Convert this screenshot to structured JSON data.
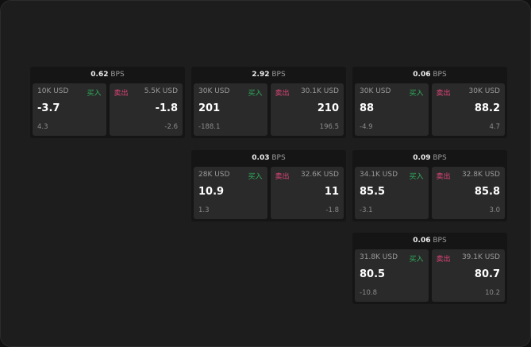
{
  "panels": [
    {
      "bps": "0.62",
      "unit": "BPS",
      "buy": {
        "size": "10K USD",
        "label": "买入",
        "price": "-3.7",
        "change": "4.3"
      },
      "sell": {
        "size": "5.5K USD",
        "label": "卖出",
        "price": "-1.8",
        "change": "-2.6"
      }
    },
    {
      "bps": "2.92",
      "unit": "BPS",
      "buy": {
        "size": "30K USD",
        "label": "买入",
        "price": "201",
        "change": "-188.1"
      },
      "sell": {
        "size": "30.1K USD",
        "label": "卖出",
        "price": "210",
        "change": "196.5"
      }
    },
    {
      "bps": "0.06",
      "unit": "BPS",
      "buy": {
        "size": "30K USD",
        "label": "买入",
        "price": "88",
        "change": "-4.9"
      },
      "sell": {
        "size": "30K USD",
        "label": "卖出",
        "price": "88.2",
        "change": "4.7"
      }
    },
    {
      "bps": "0.03",
      "unit": "BPS",
      "buy": {
        "size": "28K USD",
        "label": "买入",
        "price": "10.9",
        "change": "1.3"
      },
      "sell": {
        "size": "32.6K USD",
        "label": "卖出",
        "price": "11",
        "change": "-1.8"
      }
    },
    {
      "bps": "0.09",
      "unit": "BPS",
      "buy": {
        "size": "34.1K USD",
        "label": "买入",
        "price": "85.5",
        "change": "-3.1"
      },
      "sell": {
        "size": "32.8K USD",
        "label": "卖出",
        "price": "85.8",
        "change": "3.0"
      }
    },
    {
      "bps": "0.06",
      "unit": "BPS",
      "buy": {
        "size": "31.8K USD",
        "label": "买入",
        "price": "80.5",
        "change": "-10.8"
      },
      "sell": {
        "size": "39.1K USD",
        "label": "卖出",
        "price": "80.7",
        "change": "10.2"
      }
    }
  ],
  "colors": {
    "buy": "#2fae5c",
    "sell": "#e0457b"
  }
}
